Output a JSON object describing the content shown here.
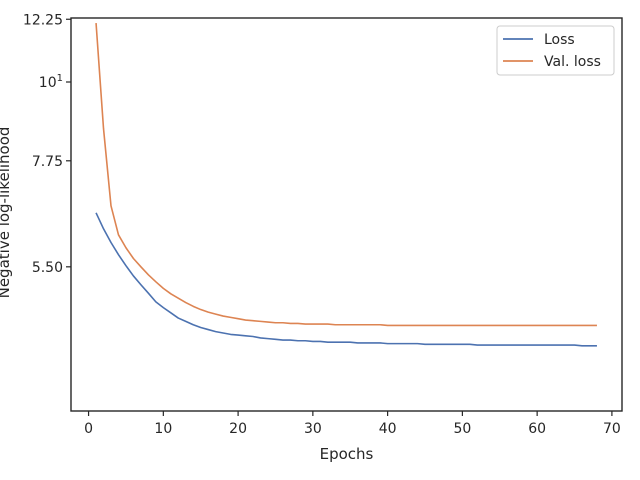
{
  "chart_data": {
    "type": "line",
    "xlabel": "Epochs",
    "ylabel": "Negative log-likelihood",
    "xlim": [
      -2.35,
      71.35
    ],
    "ylim": [
      3.45,
      12.3
    ],
    "y_scale": "log",
    "grid": false,
    "legend_placement": "top-right",
    "x_ticks": [
      0,
      10,
      20,
      30,
      40,
      50,
      60,
      70
    ],
    "x_tick_labels": [
      "0",
      "10",
      "20",
      "30",
      "40",
      "50",
      "60",
      "70"
    ],
    "y_ticks": [
      5.5,
      7.75,
      10,
      12.25
    ],
    "y_tick_labels": [
      "5.50",
      "7.75",
      "10",
      "12.25"
    ],
    "y_tick_superscripts": [
      "",
      "",
      "1",
      ""
    ],
    "series": [
      {
        "name": "Loss",
        "color": "#4c72b0",
        "x": [
          1,
          2,
          3,
          4,
          5,
          6,
          7,
          8,
          9,
          10,
          11,
          12,
          13,
          14,
          15,
          16,
          17,
          18,
          19,
          20,
          21,
          22,
          23,
          24,
          25,
          26,
          27,
          28,
          29,
          30,
          31,
          32,
          33,
          34,
          35,
          36,
          37,
          38,
          39,
          40,
          41,
          42,
          43,
          44,
          45,
          46,
          47,
          48,
          49,
          50,
          51,
          52,
          53,
          54,
          55,
          56,
          57,
          58,
          59,
          60,
          61,
          62,
          63,
          64,
          65,
          66,
          67,
          68
        ],
        "values": [
          6.55,
          6.22,
          5.95,
          5.72,
          5.52,
          5.34,
          5.19,
          5.05,
          4.91,
          4.82,
          4.74,
          4.66,
          4.61,
          4.56,
          4.52,
          4.49,
          4.46,
          4.44,
          4.42,
          4.41,
          4.4,
          4.39,
          4.37,
          4.36,
          4.35,
          4.34,
          4.34,
          4.33,
          4.33,
          4.32,
          4.32,
          4.31,
          4.31,
          4.31,
          4.31,
          4.3,
          4.3,
          4.3,
          4.3,
          4.29,
          4.29,
          4.29,
          4.29,
          4.29,
          4.28,
          4.28,
          4.28,
          4.28,
          4.28,
          4.28,
          4.28,
          4.27,
          4.27,
          4.27,
          4.27,
          4.27,
          4.27,
          4.27,
          4.27,
          4.27,
          4.27,
          4.27,
          4.27,
          4.27,
          4.27,
          4.26,
          4.26,
          4.26
        ]
      },
      {
        "name": "Val. loss",
        "color": "#dd8452",
        "x": [
          1,
          2,
          3,
          4,
          5,
          6,
          7,
          8,
          9,
          10,
          11,
          12,
          13,
          14,
          15,
          16,
          17,
          18,
          19,
          20,
          21,
          22,
          23,
          24,
          25,
          26,
          27,
          28,
          29,
          30,
          31,
          32,
          33,
          34,
          35,
          36,
          37,
          38,
          39,
          40,
          41,
          42,
          43,
          44,
          45,
          46,
          47,
          48,
          49,
          50,
          51,
          52,
          53,
          54,
          55,
          56,
          57,
          58,
          59,
          60,
          61,
          62,
          63,
          64,
          65,
          66,
          67,
          68
        ],
        "values": [
          12.1,
          8.6,
          6.7,
          6.1,
          5.85,
          5.65,
          5.5,
          5.36,
          5.24,
          5.13,
          5.04,
          4.97,
          4.9,
          4.84,
          4.79,
          4.75,
          4.72,
          4.69,
          4.67,
          4.65,
          4.63,
          4.62,
          4.61,
          4.6,
          4.59,
          4.59,
          4.58,
          4.58,
          4.57,
          4.57,
          4.57,
          4.57,
          4.56,
          4.56,
          4.56,
          4.56,
          4.56,
          4.56,
          4.56,
          4.55,
          4.55,
          4.55,
          4.55,
          4.55,
          4.55,
          4.55,
          4.55,
          4.55,
          4.55,
          4.55,
          4.55,
          4.55,
          4.55,
          4.55,
          4.55,
          4.55,
          4.55,
          4.55,
          4.55,
          4.55,
          4.55,
          4.55,
          4.55,
          4.55,
          4.55,
          4.55,
          4.55,
          4.55
        ]
      }
    ]
  }
}
